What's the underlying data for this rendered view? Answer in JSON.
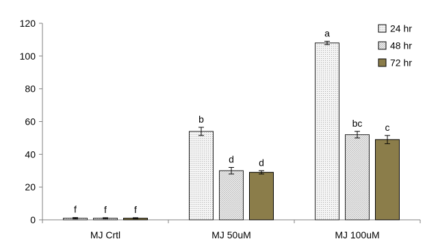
{
  "chart_data": {
    "type": "bar",
    "categories": [
      "MJ Crtl",
      "MJ 50uM",
      "MJ 100uM"
    ],
    "series": [
      {
        "name": "24 hr",
        "values": [
          1,
          54,
          108
        ],
        "errors": [
          0.4,
          2.5,
          1.0
        ],
        "labels": [
          "f",
          "b",
          "a"
        ],
        "color": "#f0f0f0",
        "pattern": "dots"
      },
      {
        "name": "48 hr",
        "values": [
          1,
          30,
          52
        ],
        "errors": [
          0.3,
          2.0,
          2.0
        ],
        "labels": [
          "f",
          "d",
          "bc"
        ],
        "color": "#b3b3b3",
        "pattern": "hatch"
      },
      {
        "name": "72 hr",
        "values": [
          1,
          29,
          49
        ],
        "errors": [
          0.3,
          1.0,
          2.5
        ],
        "labels": [
          "f",
          "d",
          "c"
        ],
        "color": "#8b7d4a",
        "pattern": "none"
      }
    ],
    "ylim": [
      0,
      120
    ],
    "yticks": [
      0,
      20,
      40,
      60,
      80,
      100,
      120
    ],
    "grid": false,
    "legend_position": "top-right"
  }
}
